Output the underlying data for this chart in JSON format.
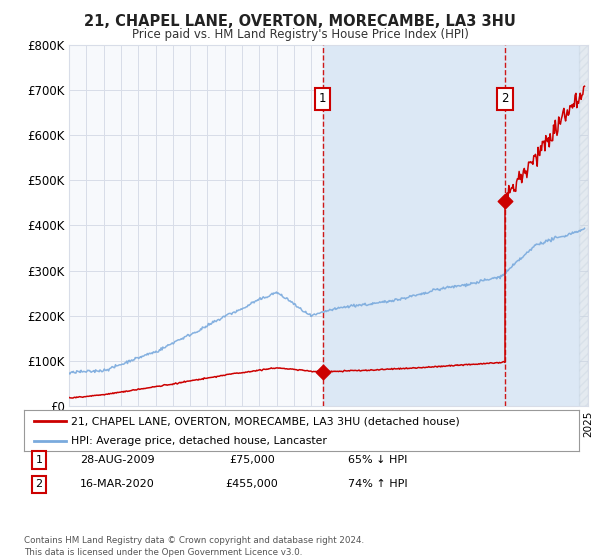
{
  "title": "21, CHAPEL LANE, OVERTON, MORECAMBE, LA3 3HU",
  "subtitle": "Price paid vs. HM Land Registry's House Price Index (HPI)",
  "xlim": [
    1995,
    2025
  ],
  "ylim": [
    0,
    800000
  ],
  "yticks": [
    0,
    100000,
    200000,
    300000,
    400000,
    500000,
    600000,
    700000,
    800000
  ],
  "ytick_labels": [
    "£0",
    "£100K",
    "£200K",
    "£300K",
    "£400K",
    "£500K",
    "£600K",
    "£700K",
    "£800K"
  ],
  "t1_x": 2009.66,
  "t1_price": 75000,
  "t2_x": 2020.21,
  "t2_price": 455000,
  "red_color": "#cc0000",
  "blue_color": "#7aaadd",
  "plot_bg": "#f7f9fc",
  "grid_color": "#d8dde8",
  "shade_color": "#dce8f5",
  "hatch_color": "#c8d4e0",
  "legend_label_red": "21, CHAPEL LANE, OVERTON, MORECAMBE, LA3 3HU (detached house)",
  "legend_label_blue": "HPI: Average price, detached house, Lancaster",
  "t1_date_str": "28-AUG-2009",
  "t1_price_str": "£75,000",
  "t1_hpi_str": "65% ↓ HPI",
  "t2_date_str": "16-MAR-2020",
  "t2_price_str": "£455,000",
  "t2_hpi_str": "74% ↑ HPI",
  "footer": "Contains HM Land Registry data © Crown copyright and database right 2024.\nThis data is licensed under the Open Government Licence v3.0."
}
